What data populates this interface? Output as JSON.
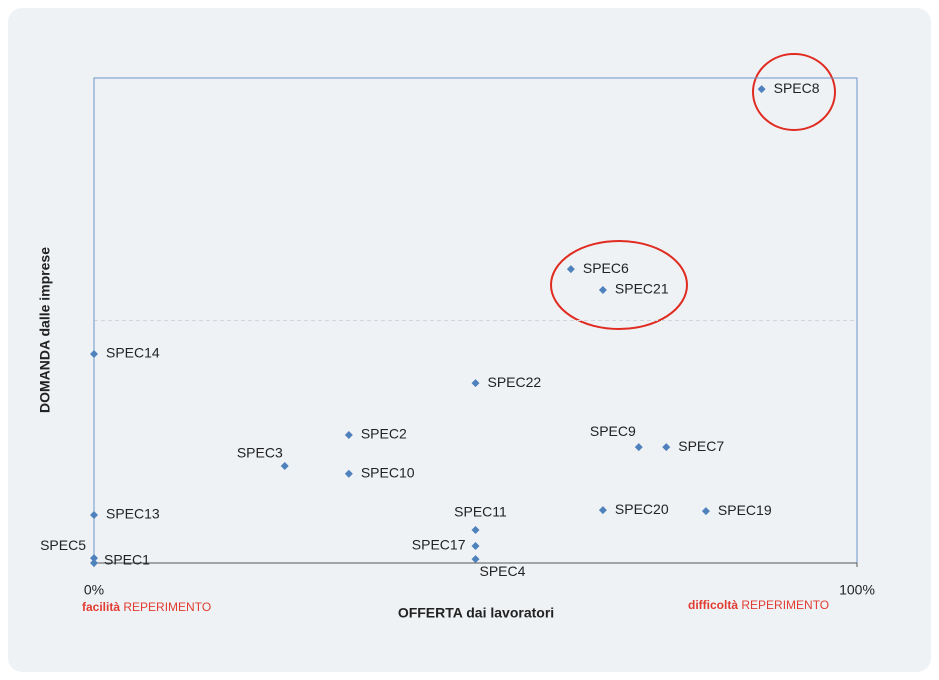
{
  "chart_data": {
    "type": "scatter",
    "x_label": "OFFERTA dai lavoratori",
    "y_label": "DOMANDA dalle imprese",
    "annotations": [
      [
        "facilità",
        "REPERIMENTO"
      ],
      [
        "difficoltà",
        "REPERIMENTO"
      ]
    ],
    "color": "#4f81bd",
    "xlim": [
      0,
      100
    ],
    "ylim": [
      0,
      100
    ],
    "xticks": [
      {
        "value": 0,
        "label": "0%"
      },
      {
        "value": 100,
        "label": "100%"
      }
    ],
    "labels": [
      "SPEC8",
      "SPEC6",
      "SPEC21",
      "SPEC14",
      "SPEC22",
      "SPEC2",
      "SPEC3",
      "SPEC10",
      "SPEC9",
      "SPEC7",
      "SPEC13",
      "SPEC11",
      "SPEC20",
      "SPEC19",
      "SPEC17",
      "SPEC5",
      "SPEC1",
      "SPEC4"
    ],
    "x": [
      87.5,
      62.5,
      66.7,
      0,
      50,
      33.4,
      25,
      33.4,
      71.4,
      75,
      0,
      50,
      66.7,
      80.2,
      50,
      0,
      0,
      50
    ],
    "y": [
      97.7,
      60.6,
      56.3,
      43.1,
      37.1,
      26.4,
      20,
      18.4,
      23.9,
      23.9,
      9.9,
      6.8,
      10.9,
      10.7,
      3.5,
      1,
      0,
      0.8
    ]
  }
}
